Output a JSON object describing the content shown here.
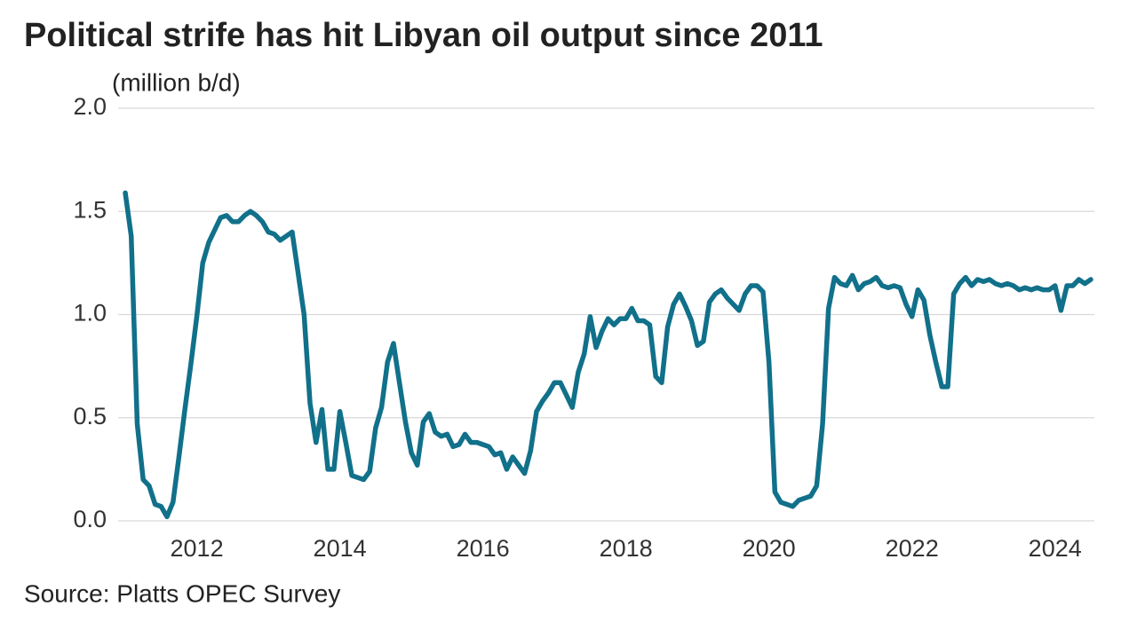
{
  "chart_data": {
    "type": "line",
    "title": "Political strife has hit Libyan oil output since 2011",
    "y_label": "(million b/d)",
    "source": "Source: Platts OPEC Survey",
    "color": "#11708a",
    "grid": true,
    "xlim": [
      2010.9,
      2024.55
    ],
    "xticks": [
      2012,
      2014,
      2016,
      2018,
      2020,
      2022,
      2024
    ],
    "ylim": [
      0,
      2
    ],
    "yticks": [
      {
        "value": 0,
        "label": "0.0"
      },
      0.5,
      {
        "value": 1,
        "label": "1.0"
      },
      1.5,
      {
        "value": 2,
        "label": "2.0"
      }
    ],
    "x": [
      2011,
      2011.083,
      2011.167,
      2011.25,
      2011.333,
      2011.417,
      2011.5,
      2011.583,
      2011.667,
      2011.75,
      2011.833,
      2011.917,
      2012,
      2012.083,
      2012.167,
      2012.25,
      2012.333,
      2012.417,
      2012.5,
      2012.583,
      2012.667,
      2012.75,
      2012.833,
      2012.917,
      2013,
      2013.083,
      2013.167,
      2013.25,
      2013.333,
      2013.417,
      2013.5,
      2013.583,
      2013.667,
      2013.75,
      2013.833,
      2013.917,
      2014,
      2014.083,
      2014.167,
      2014.25,
      2014.333,
      2014.417,
      2014.5,
      2014.583,
      2014.667,
      2014.75,
      2014.833,
      2014.917,
      2015,
      2015.083,
      2015.167,
      2015.25,
      2015.333,
      2015.417,
      2015.5,
      2015.583,
      2015.667,
      2015.75,
      2015.833,
      2015.917,
      2016,
      2016.083,
      2016.167,
      2016.25,
      2016.333,
      2016.417,
      2016.5,
      2016.583,
      2016.667,
      2016.75,
      2016.833,
      2016.917,
      2017,
      2017.083,
      2017.167,
      2017.25,
      2017.333,
      2017.417,
      2017.5,
      2017.583,
      2017.667,
      2017.75,
      2017.833,
      2017.917,
      2018,
      2018.083,
      2018.167,
      2018.25,
      2018.333,
      2018.417,
      2018.5,
      2018.583,
      2018.667,
      2018.75,
      2018.833,
      2018.917,
      2019,
      2019.083,
      2019.167,
      2019.25,
      2019.333,
      2019.417,
      2019.5,
      2019.583,
      2019.667,
      2019.75,
      2019.833,
      2019.917,
      2020,
      2020.083,
      2020.167,
      2020.25,
      2020.333,
      2020.417,
      2020.5,
      2020.583,
      2020.667,
      2020.75,
      2020.833,
      2020.917,
      2021,
      2021.083,
      2021.167,
      2021.25,
      2021.333,
      2021.417,
      2021.5,
      2021.583,
      2021.667,
      2021.75,
      2021.833,
      2021.917,
      2022,
      2022.083,
      2022.167,
      2022.25,
      2022.333,
      2022.417,
      2022.5,
      2022.583,
      2022.667,
      2022.75,
      2022.833,
      2022.917,
      2023,
      2023.083,
      2023.167,
      2023.25,
      2023.333,
      2023.417,
      2023.5,
      2023.583,
      2023.667,
      2023.75,
      2023.833,
      2023.917,
      2024,
      2024.083,
      2024.167,
      2024.25,
      2024.333,
      2024.417,
      2024.5
    ],
    "values": [
      1.59,
      1.38,
      0.47,
      0.2,
      0.17,
      0.08,
      0.07,
      0.02,
      0.09,
      0.31,
      0.54,
      0.76,
      0.99,
      1.25,
      1.35,
      1.41,
      1.47,
      1.48,
      1.45,
      1.45,
      1.48,
      1.5,
      1.48,
      1.45,
      1.4,
      1.39,
      1.36,
      1.38,
      1.4,
      1.2,
      1.0,
      0.57,
      0.38,
      0.54,
      0.25,
      0.25,
      0.53,
      0.38,
      0.22,
      0.21,
      0.2,
      0.24,
      0.45,
      0.55,
      0.77,
      0.86,
      0.67,
      0.48,
      0.33,
      0.27,
      0.48,
      0.52,
      0.43,
      0.41,
      0.42,
      0.36,
      0.37,
      0.42,
      0.38,
      0.38,
      0.37,
      0.36,
      0.32,
      0.33,
      0.25,
      0.31,
      0.27,
      0.23,
      0.34,
      0.53,
      0.58,
      0.62,
      0.67,
      0.67,
      0.61,
      0.55,
      0.72,
      0.81,
      0.99,
      0.84,
      0.92,
      0.98,
      0.95,
      0.98,
      0.98,
      1.03,
      0.97,
      0.97,
      0.95,
      0.7,
      0.67,
      0.94,
      1.05,
      1.1,
      1.04,
      0.97,
      0.85,
      0.87,
      1.06,
      1.1,
      1.12,
      1.08,
      1.05,
      1.02,
      1.1,
      1.14,
      1.14,
      1.11,
      0.77,
      0.14,
      0.09,
      0.08,
      0.07,
      0.1,
      0.11,
      0.12,
      0.17,
      0.47,
      1.03,
      1.18,
      1.15,
      1.14,
      1.19,
      1.12,
      1.15,
      1.16,
      1.18,
      1.14,
      1.13,
      1.14,
      1.13,
      1.05,
      0.99,
      1.12,
      1.07,
      0.9,
      0.77,
      0.65,
      0.65,
      1.1,
      1.15,
      1.18,
      1.14,
      1.17,
      1.16,
      1.17,
      1.15,
      1.14,
      1.15,
      1.14,
      1.12,
      1.13,
      1.12,
      1.13,
      1.12,
      1.12,
      1.14,
      1.02,
      1.14,
      1.14,
      1.17,
      1.15,
      1.17
    ]
  }
}
